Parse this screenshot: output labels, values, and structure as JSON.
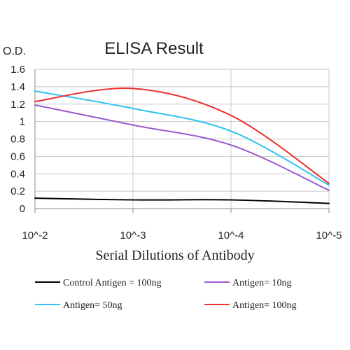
{
  "chart_data": {
    "type": "line",
    "title": "ELISA Result",
    "ylabel": "O.D.",
    "xlabel": "Serial Dilutions of Antibody",
    "categories": [
      "10^-2",
      "10^-3",
      "10^-4",
      "10^-5"
    ],
    "y_ticks": [
      "0",
      "0.2",
      "0.4",
      "0.6",
      "0.8",
      "1",
      "1.2",
      "1.4",
      "1.6"
    ],
    "ylim": [
      0,
      1.6
    ],
    "grid": true,
    "legend_position": "bottom",
    "series": [
      {
        "name": "Control Antigen = 100ng",
        "color": "#000000",
        "x": [
          0,
          1,
          2,
          3
        ],
        "values": [
          0.12,
          0.1,
          0.1,
          0.06
        ]
      },
      {
        "name": "Antigen= 10ng",
        "color": "#9b59d0",
        "x": [
          0,
          1,
          2,
          3
        ],
        "values": [
          1.19,
          0.96,
          0.73,
          0.21
        ]
      },
      {
        "name": "Antigen= 50ng",
        "color": "#2ec4f2",
        "x": [
          0,
          1,
          2,
          3
        ],
        "values": [
          1.35,
          1.15,
          0.89,
          0.27
        ]
      },
      {
        "name": "Antigen= 100ng",
        "color": "#f03030",
        "x": [
          0,
          1,
          2,
          3
        ],
        "values": [
          1.23,
          1.38,
          1.07,
          0.29
        ]
      }
    ]
  }
}
